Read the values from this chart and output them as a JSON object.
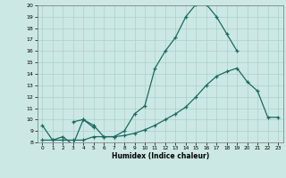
{
  "xlabel": "Humidex (Indice chaleur)",
  "bg_color": "#cce8e4",
  "grid_color": "#aad0cc",
  "line_color": "#1a6b60",
  "xlim": [
    -0.5,
    23.5
  ],
  "ylim": [
    8,
    20
  ],
  "xticks": [
    0,
    1,
    2,
    3,
    4,
    5,
    6,
    7,
    8,
    9,
    10,
    11,
    12,
    13,
    14,
    15,
    16,
    17,
    18,
    19,
    20,
    21,
    22,
    23
  ],
  "yticks": [
    8,
    9,
    10,
    11,
    12,
    13,
    14,
    15,
    16,
    17,
    18,
    19,
    20
  ],
  "series": [
    {
      "x": [
        0,
        1,
        2,
        3,
        4,
        5,
        6,
        7,
        8,
        9,
        10,
        11,
        12,
        13,
        14,
        15,
        16,
        17,
        18,
        19
      ],
      "y": [
        9.5,
        8.2,
        8.5,
        7.8,
        10.0,
        9.5,
        8.5,
        8.5,
        9.0,
        10.5,
        11.2,
        14.5,
        16.0,
        17.2,
        19.0,
        20.1,
        20.1,
        19.0,
        17.5,
        16.0
      ]
    },
    {
      "x": [
        3,
        4,
        5
      ],
      "y": [
        9.8,
        10.0,
        9.3
      ]
    },
    {
      "x": [
        0,
        1,
        2,
        3,
        4,
        5,
        6,
        7,
        8,
        9,
        10,
        11,
        12,
        13,
        14,
        15,
        16,
        17,
        18,
        19,
        20,
        21,
        22,
        23
      ],
      "y": [
        8.2,
        8.2,
        8.2,
        8.2,
        8.2,
        8.5,
        8.5,
        8.5,
        8.6,
        8.8,
        9.1,
        9.5,
        10.0,
        10.5,
        11.1,
        12.0,
        13.0,
        13.8,
        14.2,
        14.5,
        13.3,
        12.5,
        10.2,
        10.2
      ]
    }
  ]
}
